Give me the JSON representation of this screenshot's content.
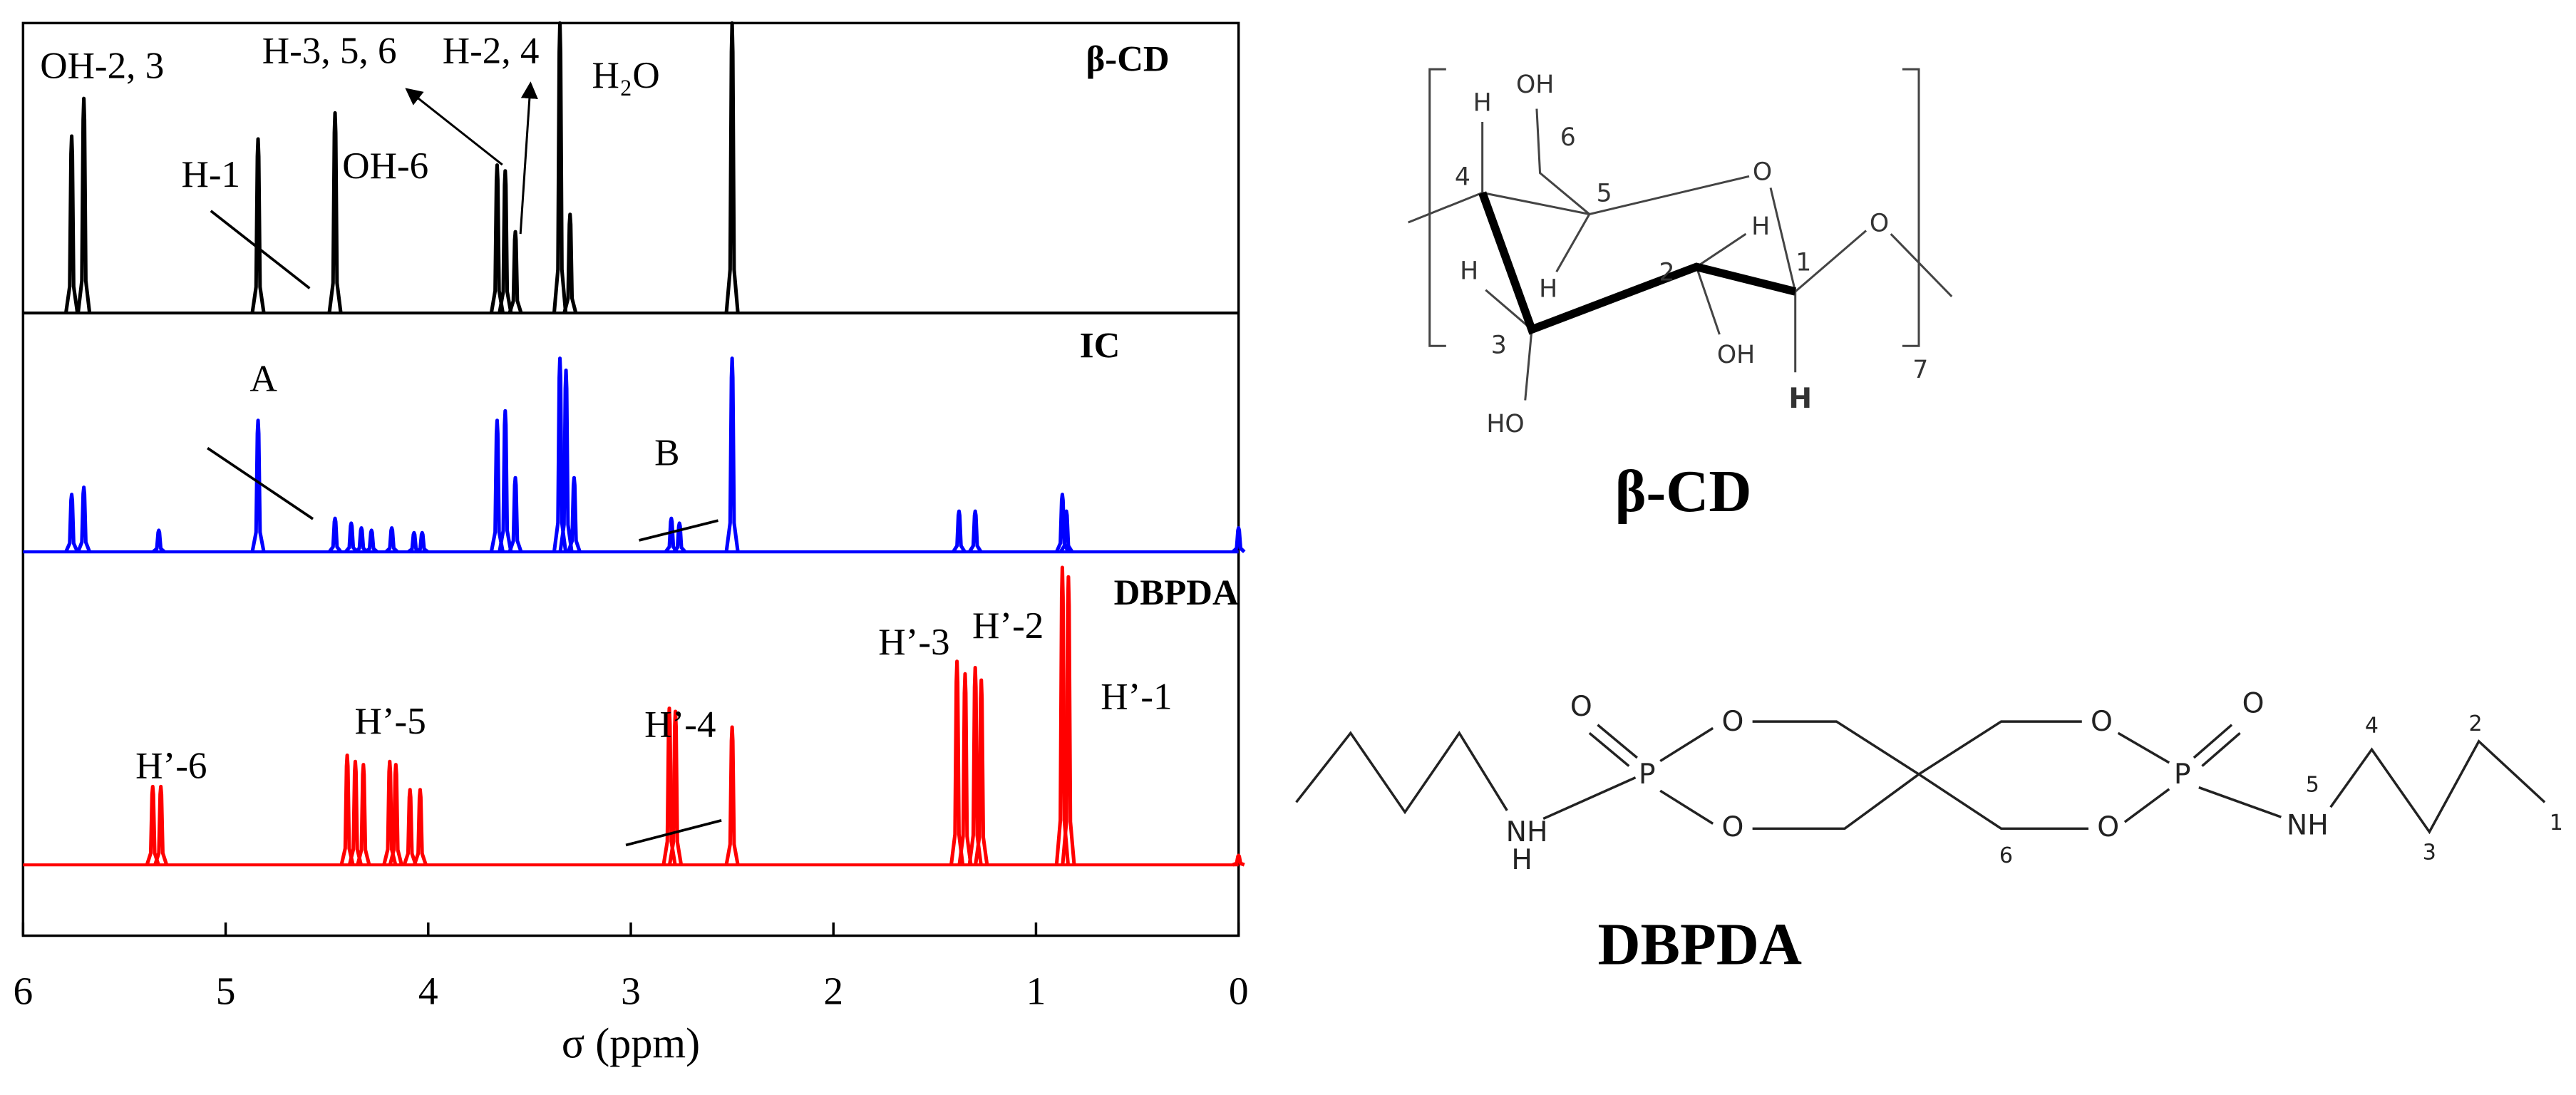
{
  "chart_data": {
    "type": "spectrum",
    "xlabel": "σ (ppm)",
    "xlim": [
      6,
      0
    ],
    "xticks": [
      6,
      5,
      4,
      3,
      2,
      1,
      0
    ],
    "ylim": [
      0,
      100
    ],
    "series": [
      {
        "name": "β-CD",
        "color": "#000000",
        "x": [
          5.76,
          5.7,
          4.84,
          4.46,
          3.66,
          3.62,
          3.57,
          3.35,
          3.3,
          2.5
        ],
        "values": [
          61,
          74,
          60,
          69,
          51,
          49,
          28,
          100,
          34,
          100
        ],
        "annotations": [
          "OH-2, 3",
          "H-3, 5, 6",
          "H-2, 4",
          "H₂O",
          "H-1",
          "OH-6"
        ]
      },
      {
        "name": "IC",
        "color": "#0000ff",
        "x": [
          5.76,
          5.7,
          5.33,
          4.84,
          4.46,
          4.38,
          4.33,
          4.28,
          4.18,
          4.07,
          4.03,
          3.66,
          3.62,
          3.57,
          3.35,
          3.32,
          3.28,
          2.8,
          2.76,
          2.5,
          1.38,
          1.3,
          0.87,
          0.85,
          0.0
        ],
        "values": [
          24,
          27,
          9,
          55,
          14,
          12,
          10,
          9,
          10,
          8,
          8,
          55,
          59,
          31,
          81,
          76,
          31,
          14,
          12,
          81,
          17,
          17,
          24,
          17,
          10
        ],
        "annotations": [
          "A",
          "B"
        ]
      },
      {
        "name": "DBPDA",
        "color": "#ff0000",
        "x": [
          5.36,
          5.32,
          4.4,
          4.36,
          4.32,
          4.19,
          4.16,
          4.09,
          4.04,
          2.81,
          2.78,
          2.5,
          1.39,
          1.35,
          1.3,
          1.27,
          0.87,
          0.84,
          0.0
        ],
        "values": [
          25,
          25,
          35,
          33,
          32,
          33,
          32,
          24,
          24,
          50,
          49,
          44,
          65,
          61,
          63,
          59,
          95,
          92,
          3
        ],
        "annotations": [
          "H’-6",
          "H’-5",
          "H’-4",
          "H’-3",
          "H’-2",
          "H’-1"
        ]
      }
    ]
  },
  "structures": [
    {
      "name": "β-CD",
      "labels": [
        "OH",
        "6",
        "H",
        "4",
        "5",
        "O",
        "H",
        "1",
        "O",
        "H",
        "2",
        "OH",
        "H",
        "H",
        "3",
        "HO",
        "7"
      ]
    },
    {
      "name": "DBPDA",
      "labels": [
        "NH",
        "H",
        "O",
        "O",
        "O",
        "P",
        "O",
        "O",
        "6",
        "O",
        "P",
        "NH",
        "5",
        "4",
        "3",
        "2",
        "1"
      ]
    }
  ]
}
